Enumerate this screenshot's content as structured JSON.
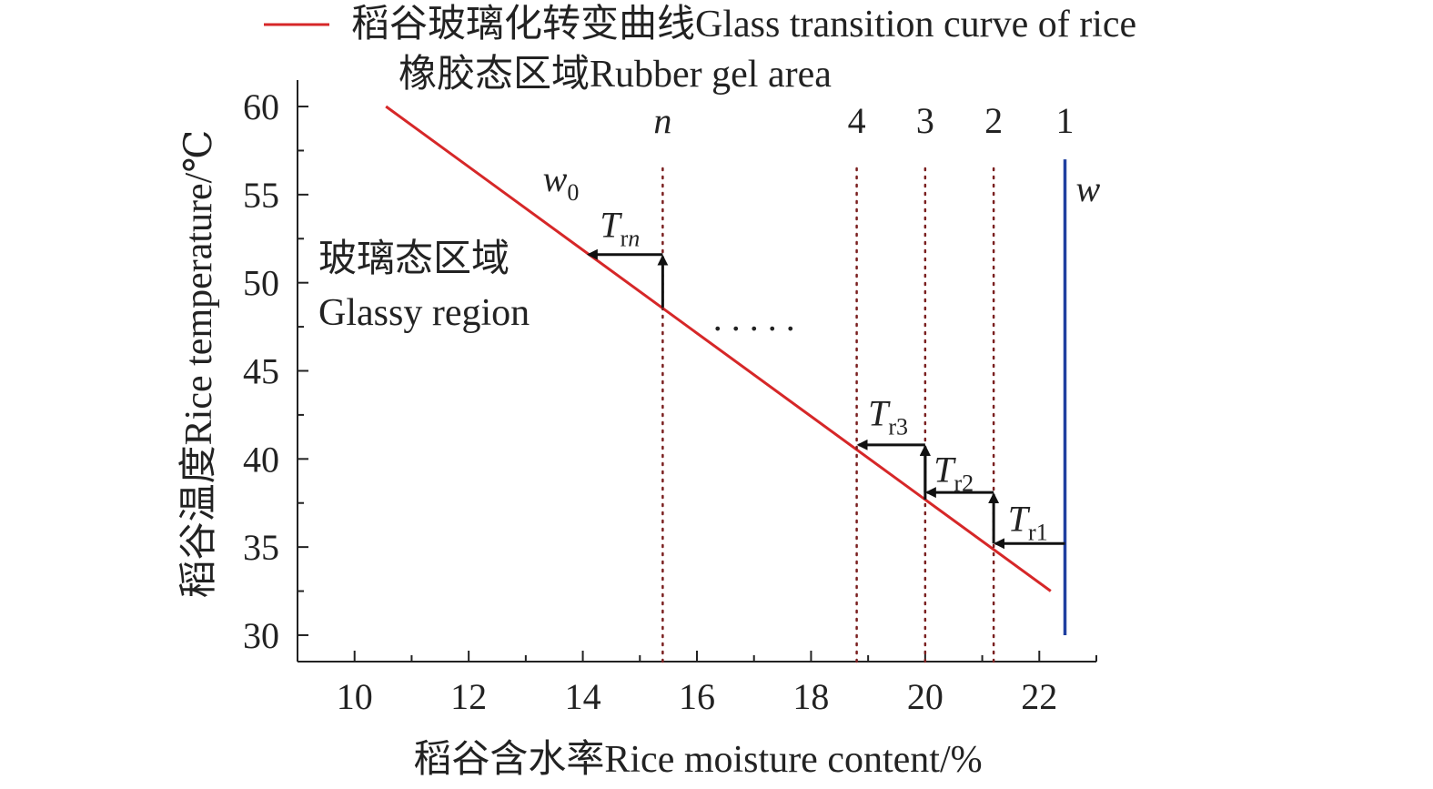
{
  "chart_data": {
    "type": "line",
    "xlabel": "稻谷含水率Rice moisture content/%",
    "ylabel": "稻谷温度Rice temperature/℃",
    "xlim": [
      9,
      23
    ],
    "ylim": [
      28.5,
      61.5
    ],
    "x_ticks": [
      10,
      12,
      14,
      16,
      18,
      20,
      22
    ],
    "y_ticks": [
      30,
      35,
      40,
      45,
      50,
      55,
      60
    ],
    "grid": false,
    "legend_position": "top",
    "legend": [
      {
        "label": "稻谷玻璃化转变曲线Glass transition curve of rice",
        "color": "#d62728",
        "marker": "line"
      }
    ],
    "series": [
      {
        "name": "稻谷玻璃化转变曲线Glass transition curve of rice",
        "color": "#d62728",
        "x": [
          10.55,
          22.2
        ],
        "y": [
          60,
          32.5
        ]
      }
    ],
    "region_labels": {
      "rubber": "橡胶态区域Rubber gel area",
      "glassy_cn": "玻璃态区域",
      "glassy_en": "Glassy region"
    },
    "moisture_line": {
      "label": "w",
      "x": 22.45,
      "y_from": 30,
      "y_to": 57,
      "color": "#1f3fa0"
    },
    "w0_label": {
      "base": "w",
      "sub": "0",
      "x": 13.3,
      "y": 55.2
    },
    "stages": [
      {
        "label": "1",
        "x": 22.45
      },
      {
        "label": "2",
        "x": 21.2
      },
      {
        "label": "3",
        "x": 20.0
      },
      {
        "label": "4",
        "x": 18.8
      },
      {
        "label": "n",
        "x": 15.4
      }
    ],
    "ellipsis": {
      "text": ". . . . .",
      "x": 17.0,
      "y": 47.3
    },
    "steps": [
      {
        "label_base": "T",
        "label_sub": "r1",
        "x_from": 22.45,
        "x_to": 21.2,
        "y_from": 35.2,
        "y_to": 38.1,
        "label_x": 21.45,
        "label_y": 35.9
      },
      {
        "label_base": "T",
        "label_sub": "r2",
        "x_from": 21.2,
        "x_to": 20.0,
        "y_from": 38.1,
        "y_to": 40.8,
        "label_x": 20.15,
        "label_y": 38.7
      },
      {
        "label_base": "T",
        "label_sub": "r3",
        "x_from": 20.0,
        "x_to": 18.8,
        "y_from": 40.8,
        "y_to": null,
        "label_x": 19.0,
        "label_y": 41.9
      },
      {
        "label_base": "T",
        "label_sub": "rn",
        "x_from": null,
        "x_to": 15.4,
        "y_from": 48.6,
        "y_to": 51.6,
        "label_x": 14.3,
        "label_y": 52.6
      }
    ],
    "colors": {
      "axis": "#222222",
      "curve": "#d62728",
      "moisture": "#1f3fa0",
      "dotted": "#7a1f1f",
      "arrow": "#111111"
    }
  }
}
